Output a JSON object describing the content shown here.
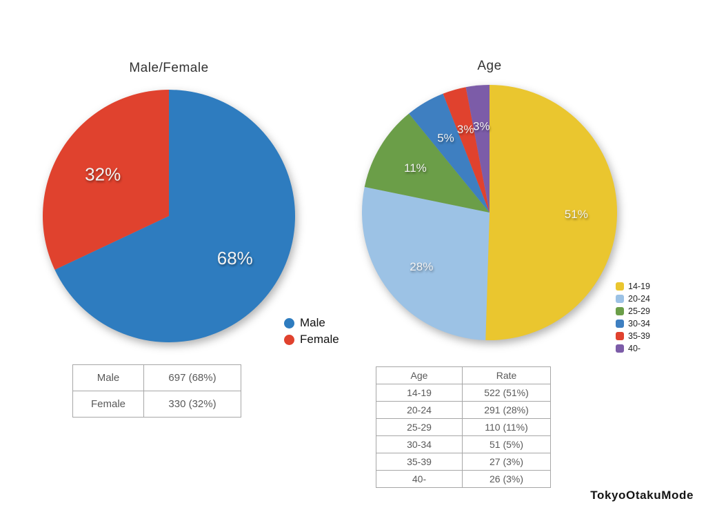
{
  "chart_data": [
    {
      "type": "pie",
      "title": "Male/Female",
      "labels": [
        "Male",
        "Female"
      ],
      "values": [
        68,
        32
      ],
      "value_labels": [
        "68%",
        "32%"
      ],
      "counts": [
        697,
        330
      ],
      "colors": [
        "#2E7CBF",
        "#E0422E"
      ],
      "legend_position": "bottom-right",
      "start_angle": "top",
      "direction": "clockwise"
    },
    {
      "type": "pie",
      "title": "Age",
      "labels": [
        "14-19",
        "20-24",
        "25-29",
        "30-34",
        "35-39",
        "40-"
      ],
      "values": [
        51,
        28,
        11,
        5,
        3,
        3
      ],
      "value_labels": [
        "51%",
        "28%",
        "11%",
        "5%",
        "3%",
        "3%"
      ],
      "counts": [
        522,
        291,
        110,
        51,
        27,
        26
      ],
      "colors": [
        "#EAC62F",
        "#9CC2E5",
        "#6B9E48",
        "#3E7FC1",
        "#E0422E",
        "#7C5CA8"
      ],
      "legend_position": "right",
      "start_angle": "top",
      "direction": "clockwise"
    }
  ],
  "tables": {
    "gender": {
      "rows": [
        [
          "Male",
          "697 (68%)"
        ],
        [
          "Female",
          "330 (32%)"
        ]
      ]
    },
    "age": {
      "headers": [
        "Age",
        "Rate"
      ],
      "rows": [
        [
          "14-19",
          "522 (51%)"
        ],
        [
          "20-24",
          "291 (28%)"
        ],
        [
          "25-29",
          "110 (11%)"
        ],
        [
          "30-34",
          "51 (5%)"
        ],
        [
          "35-39",
          "27 (3%)"
        ],
        [
          "40-",
          "26 (3%)"
        ]
      ]
    }
  },
  "logo_text": "TokyoOtakuMode"
}
